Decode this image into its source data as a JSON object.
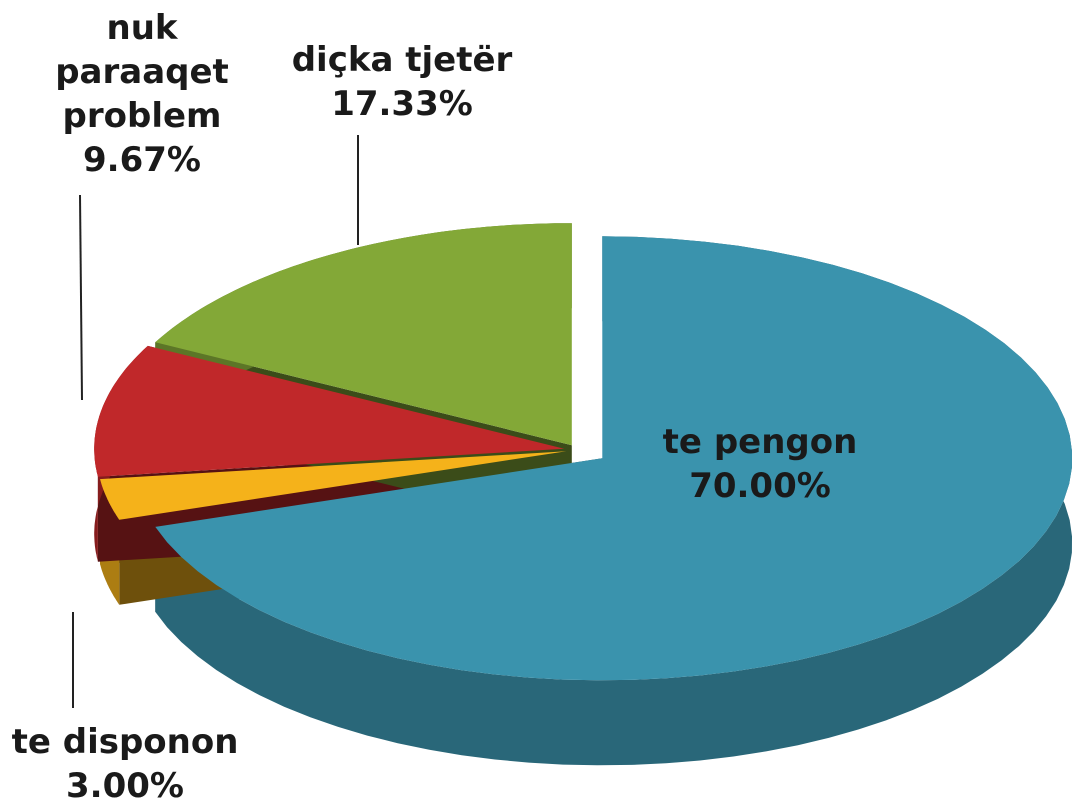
{
  "chart_data": {
    "type": "pie",
    "categories": [
      "te pengon",
      "te disponon",
      "nuk paraaqet problem",
      "diçka tjetër"
    ],
    "values": [
      70,
      3,
      9.67,
      17.33
    ],
    "value_labels": [
      "70.00%",
      "3.00%",
      "9.67%",
      "17.33%"
    ],
    "colors": [
      "#3a93ad",
      "#f5b21a",
      "#c0282a",
      "#83a837"
    ],
    "start_angle": 90,
    "direction": "clockwise",
    "3d": true
  }
}
